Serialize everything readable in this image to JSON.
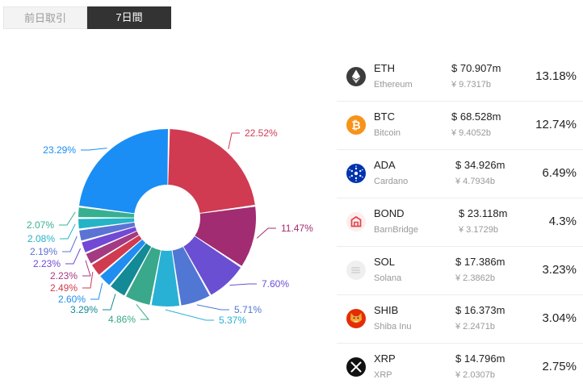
{
  "tabs": [
    {
      "label": "前日取引",
      "active": false
    },
    {
      "label": "7日間",
      "active": true
    }
  ],
  "chart_data": {
    "type": "pie",
    "values": [
      22.52,
      11.47,
      7.6,
      5.71,
      5.37,
      4.86,
      3.29,
      2.6,
      2.49,
      2.23,
      2.23,
      2.19,
      2.08,
      2.07,
      23.29
    ],
    "labels": [
      "22.52%",
      "11.47%",
      "7.60%",
      "5.71%",
      "5.37%",
      "4.86%",
      "3.29%",
      "2.60%",
      "2.49%",
      "2.23%",
      "2.23%",
      "2.19%",
      "2.08%",
      "2.07%",
      "23.29%"
    ],
    "colors": [
      "#d03b52",
      "#a22c72",
      "#6a4fd3",
      "#5177d4",
      "#28b1d5",
      "#3aa88a",
      "#138a95",
      "#1f8ef0",
      "#d13b4f",
      "#a33a82",
      "#7149d4",
      "#5b73d4",
      "#25b3c6",
      "#37b092",
      "#1a8ef4"
    ]
  },
  "coins": [
    {
      "symbol": "ETH",
      "name": "Ethereum",
      "usd": "$ 70.907m",
      "jpy": "¥ 9.7317b",
      "pct": "13.18%",
      "icon": "ethereum-icon"
    },
    {
      "symbol": "BTC",
      "name": "Bitcoin",
      "usd": "$ 68.528m",
      "jpy": "¥ 9.4052b",
      "pct": "12.74%",
      "icon": "bitcoin-icon"
    },
    {
      "symbol": "ADA",
      "name": "Cardano",
      "usd": "$ 34.926m",
      "jpy": "¥ 4.7934b",
      "pct": "6.49%",
      "icon": "cardano-icon"
    },
    {
      "symbol": "BOND",
      "name": "BarnBridge",
      "usd": "$ 23.118m",
      "jpy": "¥ 3.1729b",
      "pct": "4.3%",
      "icon": "barnbridge-icon"
    },
    {
      "symbol": "SOL",
      "name": "Solana",
      "usd": "$ 17.386m",
      "jpy": "¥ 2.3862b",
      "pct": "3.23%",
      "icon": "solana-icon"
    },
    {
      "symbol": "SHIB",
      "name": "Shiba Inu",
      "usd": "$ 16.373m",
      "jpy": "¥ 2.2471b",
      "pct": "3.04%",
      "icon": "shiba-inu-icon"
    },
    {
      "symbol": "XRP",
      "name": "XRP",
      "usd": "$ 14.796m",
      "jpy": "¥ 2.0307b",
      "pct": "2.75%",
      "icon": "xrp-icon"
    }
  ]
}
